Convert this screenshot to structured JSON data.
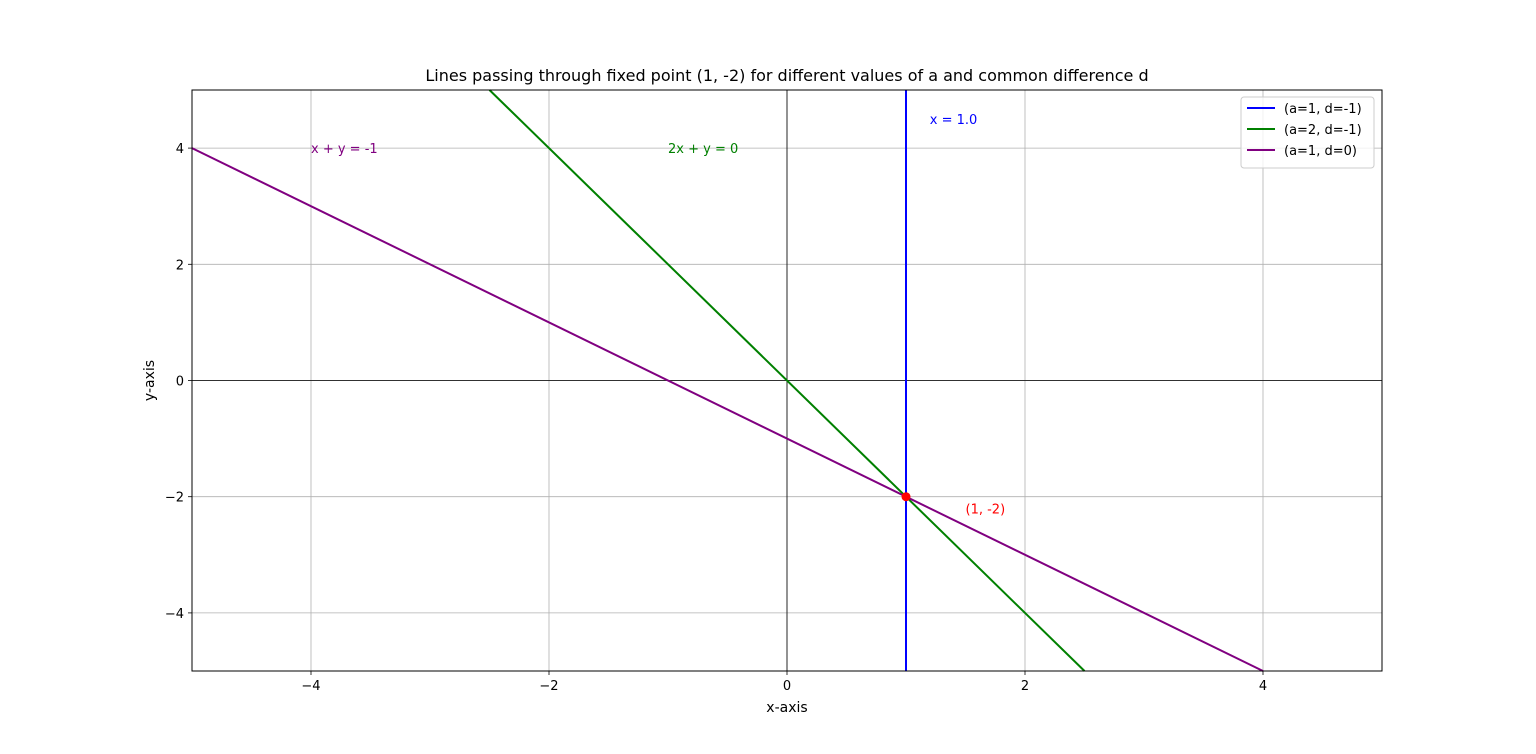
{
  "chart_data": {
    "type": "line",
    "title": "Lines passing through fixed point (1, -2) for different values of a and common difference d",
    "xlabel": "x-axis",
    "ylabel": "y-axis",
    "xlim": [
      -5,
      5
    ],
    "ylim": [
      -5,
      5
    ],
    "xticks": [
      -4,
      -2,
      0,
      2,
      4
    ],
    "yticks": [
      -4,
      -2,
      0,
      2,
      4
    ],
    "xtick_labels": [
      "−4",
      "−2",
      "0",
      "2",
      "4"
    ],
    "ytick_labels": [
      "−4",
      "−2",
      "0",
      "2",
      "4"
    ],
    "grid": true,
    "zero_lines": true,
    "legend_position": "top-right",
    "series": [
      {
        "name": "(a=1, d=-1)",
        "color": "#0000ff",
        "x": [
          1,
          1
        ],
        "y": [
          -5,
          5
        ]
      },
      {
        "name": "(a=2, d=-1)",
        "color": "#008000",
        "x": [
          -2.5,
          2.5
        ],
        "y": [
          5,
          -5
        ]
      },
      {
        "name": "(a=1, d=0)",
        "color": "#800080",
        "x": [
          -5,
          4
        ],
        "y": [
          4,
          -5
        ]
      }
    ],
    "point": {
      "x": 1,
      "y": -2,
      "color": "#ff0000",
      "label": "(1, -2)",
      "label_x": 1.5,
      "label_y": -2.2
    },
    "annotations": [
      {
        "text": "x = 1.0",
        "x": 1.2,
        "y": 4.5,
        "color": "#0000ff"
      },
      {
        "text": "2x + y = 0",
        "x": -1,
        "y": 4,
        "color": "#008000"
      },
      {
        "text": "x + y = -1",
        "x": -4,
        "y": 4,
        "color": "#800080"
      }
    ]
  }
}
